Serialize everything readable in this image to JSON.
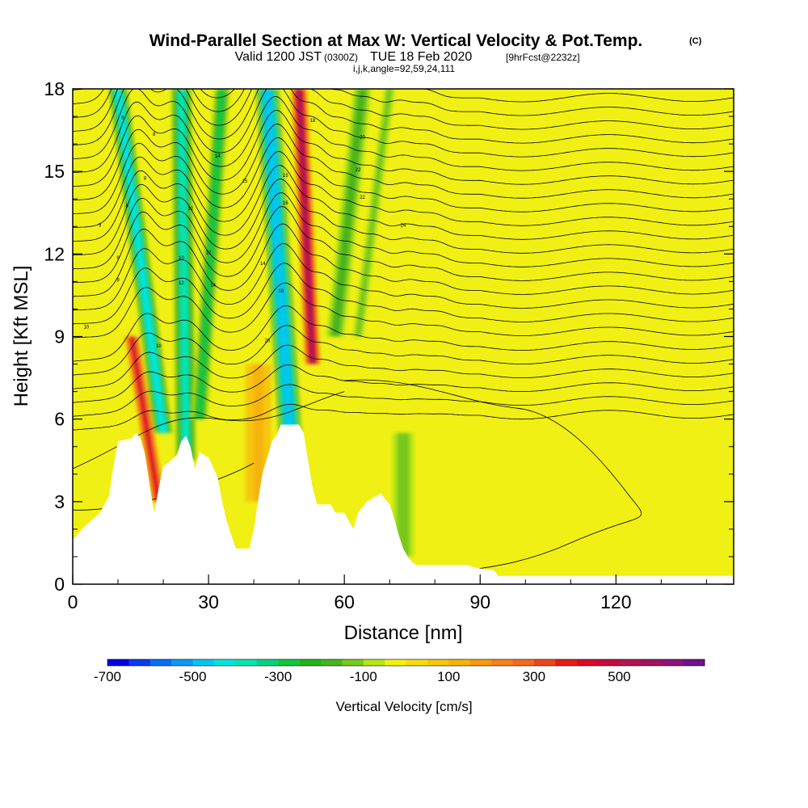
{
  "title": {
    "main": "Wind-Parallel Section at Max W: Vertical Velocity & Pot.Temp.",
    "copyright": "(C)",
    "valid_prefix": "Valid 1200 JST",
    "valid_utc": "(0300Z)",
    "valid_date": "TUE 18 Feb 2020",
    "forecast": "[9hrFcst@2232z]",
    "indices": "i,j,k,angle=92,59,24,111"
  },
  "chart_data": {
    "type": "heatmap",
    "xlabel": "Distance [nm]",
    "ylabel": "Height [Kft MSL]",
    "xlim": [
      0,
      146
    ],
    "ylim": [
      0,
      18
    ],
    "x_ticks": [
      0,
      30,
      60,
      90,
      120
    ],
    "y_ticks": [
      0,
      3,
      6,
      9,
      12,
      15,
      18
    ],
    "colorbar": {
      "title": "Vertical Velocity [cm/s]",
      "range": [
        -700,
        700
      ],
      "step": 50,
      "tick_labels": [
        -700,
        -500,
        -300,
        -100,
        100,
        300,
        500
      ],
      "colors": [
        "#0000e6",
        "#0a3cf0",
        "#0a6ef5",
        "#0a9bf5",
        "#00c8f0",
        "#00e6dc",
        "#00e6b4",
        "#00d282",
        "#10c83c",
        "#20b41e",
        "#46b41e",
        "#78c81e",
        "#b4e614",
        "#f0f014",
        "#f5dc10",
        "#f5c80a",
        "#f5b40a",
        "#f59a0a",
        "#f5821e",
        "#f56a1e",
        "#f0461e",
        "#e61e14",
        "#dc0a28",
        "#c80a3c",
        "#b41450",
        "#a0145f",
        "#8c1478",
        "#6e148c"
      ]
    },
    "terrain": [
      [
        0,
        1.6
      ],
      [
        2,
        2.0
      ],
      [
        4,
        2.3
      ],
      [
        6,
        2.6
      ],
      [
        8,
        3.2
      ],
      [
        9,
        4.3
      ],
      [
        10,
        5.2
      ],
      [
        13,
        5.3
      ],
      [
        14,
        5.5
      ],
      [
        15,
        5.3
      ],
      [
        16,
        4.7
      ],
      [
        17,
        3.6
      ],
      [
        18,
        2.6
      ],
      [
        19,
        3.5
      ],
      [
        20,
        4.3
      ],
      [
        21,
        4.4
      ],
      [
        23,
        4.7
      ],
      [
        24,
        5.2
      ],
      [
        25,
        5.4
      ],
      [
        26,
        5.0
      ],
      [
        27,
        4.2
      ],
      [
        28,
        4.8
      ],
      [
        30,
        4.6
      ],
      [
        32,
        3.9
      ],
      [
        33,
        3.0
      ],
      [
        34,
        2.3
      ],
      [
        35,
        1.8
      ],
      [
        36,
        1.3
      ],
      [
        39,
        1.3
      ],
      [
        40,
        2.0
      ],
      [
        41,
        3.1
      ],
      [
        42,
        4.1
      ],
      [
        43,
        4.6
      ],
      [
        44,
        5.2
      ],
      [
        45,
        5.4
      ],
      [
        46,
        5.8
      ],
      [
        50,
        5.8
      ],
      [
        51,
        5.5
      ],
      [
        52,
        4.5
      ],
      [
        53,
        3.5
      ],
      [
        54,
        2.9
      ],
      [
        57,
        2.9
      ],
      [
        58,
        2.6
      ],
      [
        60,
        2.6
      ],
      [
        61,
        2.3
      ],
      [
        62,
        2.0
      ],
      [
        63,
        2.6
      ],
      [
        65,
        3.0
      ],
      [
        68,
        3.3
      ],
      [
        70,
        2.9
      ],
      [
        71,
        2.4
      ],
      [
        72,
        1.8
      ],
      [
        73,
        1.3
      ],
      [
        74,
        1.0
      ],
      [
        75,
        0.8
      ],
      [
        76,
        0.7
      ],
      [
        87,
        0.7
      ],
      [
        89,
        0.6
      ],
      [
        93,
        0.5
      ],
      [
        94,
        0.3
      ],
      [
        146,
        0.3
      ]
    ],
    "w_features": [
      {
        "center_x": [
          20,
          10
        ],
        "center_y": [
          5.5,
          18
        ],
        "width": 3.6,
        "value": -450
      },
      {
        "center_x": [
          19,
          13
        ],
        "center_y": [
          3.0,
          9
        ],
        "width": 2.6,
        "value": 420
      },
      {
        "center_x": [
          25,
          24
        ],
        "center_y": [
          4.5,
          18
        ],
        "width": 3.8,
        "value": -380
      },
      {
        "center_x": [
          28,
          33
        ],
        "center_y": [
          6,
          18
        ],
        "width": 3.2,
        "value": -260
      },
      {
        "center_x": [
          48,
          43
        ],
        "center_y": [
          5.5,
          18
        ],
        "width": 4.5,
        "value": -470
      },
      {
        "center_x": [
          53,
          50
        ],
        "center_y": [
          8,
          18
        ],
        "width": 3.0,
        "value": 520
      },
      {
        "center_x": [
          58,
          64
        ],
        "center_y": [
          9,
          18
        ],
        "width": 3.5,
        "value": -200
      },
      {
        "center_x": [
          63,
          70
        ],
        "center_y": [
          9,
          18
        ],
        "width": 3.0,
        "value": -150
      },
      {
        "center_x": [
          73,
          73
        ],
        "center_y": [
          1,
          5.5
        ],
        "width": 6,
        "value": -120
      },
      {
        "center_x": [
          41,
          41
        ],
        "center_y": [
          3,
          8
        ],
        "width": 5,
        "value": 120
      }
    ],
    "contour_labels": [
      "8",
      "8",
      "8",
      "8",
      "9",
      "9",
      "9",
      "10",
      "10",
      "10",
      "12",
      "12",
      "12",
      "14",
      "14",
      "14",
      "15",
      "15",
      "16",
      "18",
      "18",
      "20",
      "20",
      "22",
      "22",
      "24"
    ]
  }
}
